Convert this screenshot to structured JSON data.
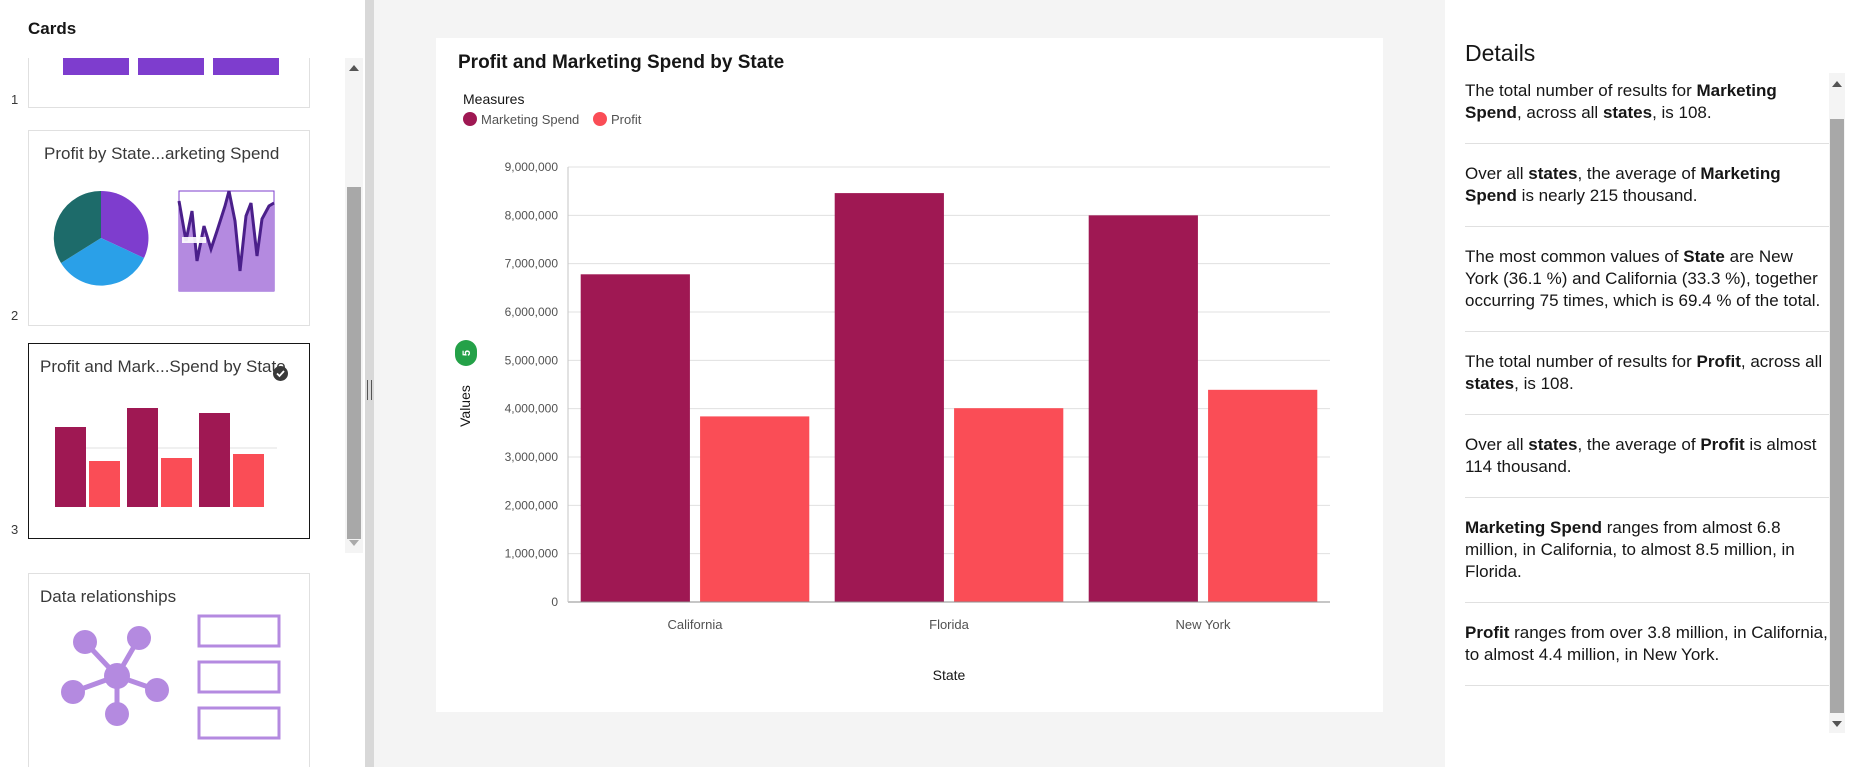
{
  "left_panel": {
    "title": "Cards",
    "cards": [
      {
        "num": "1",
        "title": ""
      },
      {
        "num": "2",
        "title": "Profit by State...arketing Spend"
      },
      {
        "num": "3",
        "title": "Profit and Mark...Spend by State",
        "selected": true
      },
      {
        "num": "",
        "title": "Data relationships"
      }
    ]
  },
  "chart_card": {
    "title": "Profit and Marketing Spend by State",
    "legend_title": "Measures",
    "count_badge": "5"
  },
  "chart_data": {
    "type": "bar",
    "title": "Profit and Marketing Spend by State",
    "xlabel": "State",
    "ylabel": "Values",
    "categories": [
      "California",
      "Florida",
      "New York"
    ],
    "series": [
      {
        "name": "Marketing Spend",
        "color": "#9f1853",
        "values": [
          6780000,
          8460000,
          8000000
        ]
      },
      {
        "name": "Profit",
        "color": "#fa4d56",
        "values": [
          3840000,
          4010000,
          4390000
        ]
      }
    ],
    "ylim": [
      0,
      9000000
    ],
    "yticks": [
      "0",
      "1,000,000",
      "2,000,000",
      "3,000,000",
      "4,000,000",
      "5,000,000",
      "6,000,000",
      "7,000,000",
      "8,000,000",
      "9,000,000"
    ],
    "grid": true,
    "legend": "top-left"
  },
  "details": {
    "title": "Details",
    "items": [
      [
        {
          "t": "The total number of results for "
        },
        {
          "t": "Marketing Spend",
          "b": true
        },
        {
          "t": ", across all "
        },
        {
          "t": "states",
          "b": true
        },
        {
          "t": ", is 108."
        }
      ],
      [
        {
          "t": "Over all "
        },
        {
          "t": "states",
          "b": true
        },
        {
          "t": ", the average of "
        },
        {
          "t": "Marketing Spend",
          "b": true
        },
        {
          "t": " is nearly 215 thousand."
        }
      ],
      [
        {
          "t": "The most common values of "
        },
        {
          "t": "State",
          "b": true
        },
        {
          "t": " are New York (36.1 %) and California (33.3 %), together occurring 75 times, which is 69.4 % of the total."
        }
      ],
      [
        {
          "t": "The total number of results for "
        },
        {
          "t": "Profit",
          "b": true
        },
        {
          "t": ", across all "
        },
        {
          "t": "states",
          "b": true
        },
        {
          "t": ", is 108."
        }
      ],
      [
        {
          "t": "Over all "
        },
        {
          "t": "states",
          "b": true
        },
        {
          "t": ", the average of "
        },
        {
          "t": "Profit",
          "b": true
        },
        {
          "t": " is almost 114 thousand."
        }
      ],
      [
        {
          "t": "Marketing Spend",
          "b": true
        },
        {
          "t": " ranges from almost 6.8 million, in California, to almost 8.5 million, in Florida."
        }
      ],
      [
        {
          "t": "Profit",
          "b": true
        },
        {
          "t": " ranges from over 3.8 million, in California, to almost 4.4 million, in New York."
        }
      ]
    ]
  },
  "colors": {
    "purple": "#7e3dce",
    "magenta": "#9f1853",
    "red": "#fa4d56",
    "teal": "#1d6b6a",
    "blue": "#2aa0e8",
    "lavender": "#b48ae0",
    "green_badge": "#24a148"
  },
  "icons": {
    "selected_card": "checkmark-circle-icon",
    "divider": "resize-handle-icon"
  }
}
